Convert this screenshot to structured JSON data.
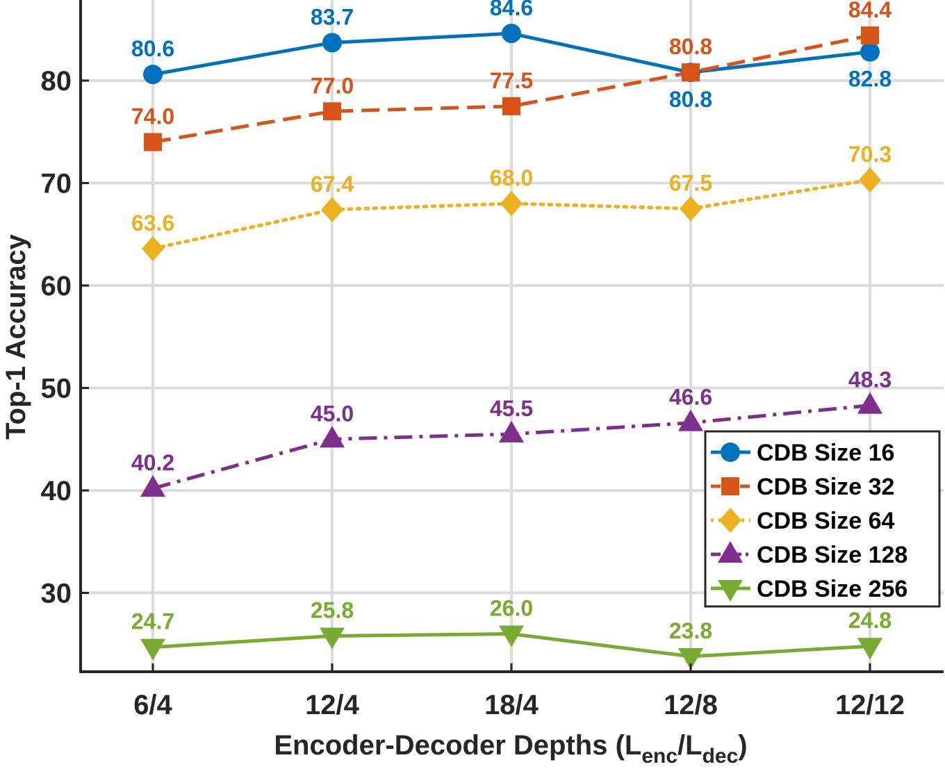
{
  "chart_data": {
    "type": "line",
    "title": "",
    "xlabel": "Encoder-Decoder Depths (",
    "xlabel_sub1": "L",
    "xlabel_sub1_index": "enc",
    "xlabel_sep": "/",
    "xlabel_sub2": "L",
    "xlabel_sub2_index": "dec",
    "xlabel_end": ")",
    "ylabel": "Top-1 Accuracy",
    "categories": [
      "6/4",
      "12/4",
      "18/4",
      "12/8",
      "12/12"
    ],
    "yticks": [
      30,
      40,
      50,
      60,
      70,
      80
    ],
    "ylim": [
      23,
      87.5
    ],
    "grid": true,
    "legend_position": "bottom-right",
    "series": [
      {
        "name": "CDB Size 16",
        "color": "#0072BD",
        "line_style": "solid",
        "marker": "circle",
        "values": [
          80.6,
          83.7,
          84.6,
          80.8,
          82.8
        ],
        "labels": [
          "80.6",
          "83.7",
          "84.6",
          "80.8",
          "82.8"
        ],
        "label_side": [
          "above",
          "above",
          "above",
          "below",
          "below"
        ]
      },
      {
        "name": "CDB Size 32",
        "color": "#D95319",
        "line_style": "dashed",
        "marker": "square",
        "values": [
          74.0,
          77.0,
          77.5,
          80.8,
          84.4
        ],
        "labels": [
          "74.0",
          "77.0",
          "77.5",
          "80.8",
          "84.4"
        ],
        "label_side": [
          "above",
          "above",
          "above",
          "above",
          "above"
        ]
      },
      {
        "name": "CDB Size 64",
        "color": "#EDB120",
        "line_style": "dotted",
        "marker": "diamond",
        "values": [
          63.6,
          67.4,
          68.0,
          67.5,
          70.3
        ],
        "labels": [
          "63.6",
          "67.4",
          "68.0",
          "67.5",
          "70.3"
        ],
        "label_side": [
          "above",
          "above",
          "above",
          "above",
          "above"
        ]
      },
      {
        "name": "CDB Size 128",
        "color": "#7E2F8E",
        "line_style": "dashdot",
        "marker": "triangle-up",
        "values": [
          40.2,
          45.0,
          45.5,
          46.6,
          48.3
        ],
        "labels": [
          "40.2",
          "45.0",
          "45.5",
          "46.6",
          "48.3"
        ],
        "label_side": [
          "above",
          "above",
          "above",
          "above",
          "above"
        ]
      },
      {
        "name": "CDB Size 256",
        "color": "#77AC30",
        "line_style": "solid",
        "marker": "triangle-down",
        "values": [
          24.7,
          25.8,
          26.0,
          23.8,
          24.8
        ],
        "labels": [
          "24.7",
          "25.8",
          "26.0",
          "23.8",
          "24.8"
        ],
        "label_side": [
          "above",
          "above",
          "above",
          "above",
          "above"
        ]
      }
    ]
  }
}
